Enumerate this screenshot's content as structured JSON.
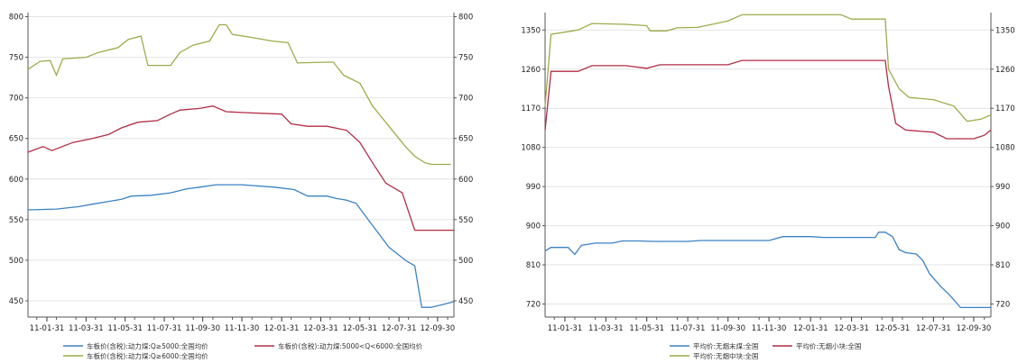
{
  "chart_data": [
    {
      "type": "line",
      "x": [
        "11-01-31",
        "11-03-31",
        "11-05-31",
        "11-07-31",
        "11-09-30",
        "11-11-30",
        "12-01-31",
        "12-03-31",
        "12-05-31",
        "12-07-31",
        "12-09-30"
      ],
      "ylim": [
        430,
        805
      ],
      "yticks": [
        450,
        500,
        550,
        600,
        650,
        700,
        750,
        800
      ],
      "grid": true,
      "legend": "bottom",
      "series": [
        {
          "name": "车板价(含税):动力煤:Q≥5000:全国均价",
          "color": "#3b82c4",
          "points": [
            [
              "11-01-01",
              562
            ],
            [
              "11-02-15",
              563
            ],
            [
              "11-03-20",
              566
            ],
            [
              "11-04-10",
              569
            ],
            [
              "11-05-25",
              575
            ],
            [
              "11-06-10",
              579
            ],
            [
              "11-07-10",
              580
            ],
            [
              "11-08-10",
              583
            ],
            [
              "11-09-05",
              588
            ],
            [
              "11-09-25",
              590
            ],
            [
              "11-10-20",
              593
            ],
            [
              "11-11-30",
              593
            ],
            [
              "12-01-20",
              590
            ],
            [
              "12-02-20",
              587
            ],
            [
              "12-03-10",
              579
            ],
            [
              "12-04-10",
              579
            ],
            [
              "12-04-25",
              576
            ],
            [
              "12-05-10",
              574
            ],
            [
              "12-05-25",
              570
            ],
            [
              "12-06-15",
              548
            ],
            [
              "12-07-15",
              516
            ],
            [
              "12-08-10",
              500
            ],
            [
              "12-08-25",
              493
            ],
            [
              "12-09-05",
              442
            ],
            [
              "12-09-20",
              442
            ],
            [
              "12-10-10",
              446
            ],
            [
              "12-10-25",
              449
            ]
          ]
        },
        {
          "name": "车板价(含税):动力煤:5000<Q<6000:全国均价",
          "color": "#b22c45",
          "points": [
            [
              "11-01-01",
              633
            ],
            [
              "11-01-25",
              640
            ],
            [
              "11-02-08",
              635
            ],
            [
              "11-03-10",
              645
            ],
            [
              "11-04-10",
              650
            ],
            [
              "11-05-05",
              655
            ],
            [
              "11-05-25",
              663
            ],
            [
              "11-06-20",
              670
            ],
            [
              "11-07-20",
              672
            ],
            [
              "11-08-10",
              680
            ],
            [
              "11-08-25",
              685
            ],
            [
              "11-09-25",
              687
            ],
            [
              "11-10-15",
              690
            ],
            [
              "11-11-05",
              683
            ],
            [
              "11-11-30",
              682
            ],
            [
              "12-01-31",
              680
            ],
            [
              "12-02-15",
              668
            ],
            [
              "12-03-10",
              665
            ],
            [
              "12-04-10",
              665
            ],
            [
              "12-05-10",
              660
            ],
            [
              "12-05-31",
              645
            ],
            [
              "12-06-20",
              620
            ],
            [
              "12-07-10",
              595
            ],
            [
              "12-08-05",
              583
            ],
            [
              "12-08-25",
              537
            ],
            [
              "12-09-20",
              537
            ],
            [
              "12-10-25",
              537
            ]
          ]
        },
        {
          "name": "车板价(含税):动力煤:Q≥6000:全国均价",
          "color": "#9eab4a",
          "points": [
            [
              "11-01-01",
              735
            ],
            [
              "11-01-20",
              745
            ],
            [
              "11-02-05",
              746
            ],
            [
              "11-02-15",
              728
            ],
            [
              "11-02-25",
              748
            ],
            [
              "11-03-31",
              750
            ],
            [
              "11-04-20",
              756
            ],
            [
              "11-05-20",
              762
            ],
            [
              "11-06-05",
              772
            ],
            [
              "11-06-25",
              776
            ],
            [
              "11-07-05",
              740
            ],
            [
              "11-07-25",
              740
            ],
            [
              "11-08-10",
              740
            ],
            [
              "11-08-25",
              756
            ],
            [
              "11-09-15",
              765
            ],
            [
              "11-10-10",
              770
            ],
            [
              "11-10-25",
              790
            ],
            [
              "11-11-05",
              790
            ],
            [
              "11-11-15",
              778
            ],
            [
              "11-12-10",
              775
            ],
            [
              "12-01-15",
              770
            ],
            [
              "12-02-10",
              768
            ],
            [
              "12-02-25",
              743
            ],
            [
              "12-04-10",
              744
            ],
            [
              "12-04-20",
              744
            ],
            [
              "12-05-05",
              728
            ],
            [
              "12-05-31",
              718
            ],
            [
              "12-06-20",
              690
            ],
            [
              "12-07-15",
              665
            ],
            [
              "12-08-10",
              640
            ],
            [
              "12-08-25",
              628
            ],
            [
              "12-09-10",
              620
            ],
            [
              "12-09-20",
              618
            ],
            [
              "12-10-20",
              618
            ]
          ]
        }
      ]
    },
    {
      "type": "line",
      "x": [
        "11-01-31",
        "11-03-31",
        "11-05-31",
        "11-07-31",
        "11-09-30",
        "11-11-30",
        "12-01-31",
        "12-03-31",
        "12-05-31",
        "12-07-31",
        "12-09-30"
      ],
      "ylim": [
        690,
        1390
      ],
      "yticks": [
        720,
        810,
        900,
        990,
        1080,
        1170,
        1260,
        1350
      ],
      "grid": true,
      "legend": "bottom",
      "series": [
        {
          "name": "平均价:无烟末煤:全国",
          "color": "#3b82c4",
          "points": [
            [
              "11-01-01",
              842
            ],
            [
              "11-01-10",
              850
            ],
            [
              "11-02-05",
              850
            ],
            [
              "11-02-15",
              834
            ],
            [
              "11-02-25",
              855
            ],
            [
              "11-03-15",
              860
            ],
            [
              "11-04-10",
              860
            ],
            [
              "11-04-25",
              865
            ],
            [
              "11-05-20",
              865
            ],
            [
              "11-06-10",
              864
            ],
            [
              "11-07-31",
              864
            ],
            [
              "11-08-20",
              866
            ],
            [
              "11-09-30",
              866
            ],
            [
              "11-11-30",
              866
            ],
            [
              "11-12-20",
              875
            ],
            [
              "12-01-31",
              875
            ],
            [
              "12-02-20",
              873
            ],
            [
              "12-04-10",
              873
            ],
            [
              "12-05-05",
              873
            ],
            [
              "12-05-10",
              885
            ],
            [
              "12-05-20",
              885
            ],
            [
              "12-05-31",
              875
            ],
            [
              "12-06-10",
              845
            ],
            [
              "12-06-20",
              838
            ],
            [
              "12-07-05",
              835
            ],
            [
              "12-07-15",
              820
            ],
            [
              "12-07-25",
              790
            ],
            [
              "12-08-10",
              762
            ],
            [
              "12-08-25",
              740
            ],
            [
              "12-09-10",
              712
            ],
            [
              "12-09-30",
              712
            ],
            [
              "12-10-25",
              712
            ]
          ]
        },
        {
          "name": "平均价:无烟小块:全国",
          "color": "#b22c45",
          "points": [
            [
              "11-01-01",
              1120
            ],
            [
              "11-01-10",
              1255
            ],
            [
              "11-02-20",
              1255
            ],
            [
              "11-03-10",
              1268
            ],
            [
              "11-04-30",
              1268
            ],
            [
              "11-05-31",
              1262
            ],
            [
              "11-06-20",
              1270
            ],
            [
              "11-07-31",
              1270
            ],
            [
              "11-09-30",
              1270
            ],
            [
              "11-10-20",
              1280
            ],
            [
              "11-12-31",
              1280
            ],
            [
              "12-01-31",
              1280
            ],
            [
              "12-05-20",
              1280
            ],
            [
              "12-05-25",
              1220
            ],
            [
              "12-06-05",
              1135
            ],
            [
              "12-06-20",
              1120
            ],
            [
              "12-07-31",
              1115
            ],
            [
              "12-08-20",
              1100
            ],
            [
              "12-09-30",
              1100
            ],
            [
              "12-10-15",
              1108
            ],
            [
              "12-10-25",
              1120
            ]
          ]
        },
        {
          "name": "平均价:无烟中块:全国",
          "color": "#9eab4a",
          "points": [
            [
              "11-01-01",
              1175
            ],
            [
              "11-01-10",
              1340
            ],
            [
              "11-02-20",
              1350
            ],
            [
              "11-03-10",
              1365
            ],
            [
              "11-04-30",
              1363
            ],
            [
              "11-05-31",
              1360
            ],
            [
              "11-06-05",
              1348
            ],
            [
              "11-06-30",
              1348
            ],
            [
              "11-07-15",
              1355
            ],
            [
              "11-08-15",
              1356
            ],
            [
              "11-09-30",
              1371
            ],
            [
              "11-10-20",
              1385
            ],
            [
              "11-12-31",
              1385
            ],
            [
              "12-01-31",
              1385
            ],
            [
              "12-03-15",
              1385
            ],
            [
              "12-03-31",
              1375
            ],
            [
              "12-05-20",
              1375
            ],
            [
              "12-05-25",
              1260
            ],
            [
              "12-06-10",
              1215
            ],
            [
              "12-06-25",
              1195
            ],
            [
              "12-07-31",
              1190
            ],
            [
              "12-08-31",
              1175
            ],
            [
              "12-09-20",
              1140
            ],
            [
              "12-10-10",
              1145
            ],
            [
              "12-10-25",
              1155
            ]
          ]
        }
      ]
    }
  ]
}
